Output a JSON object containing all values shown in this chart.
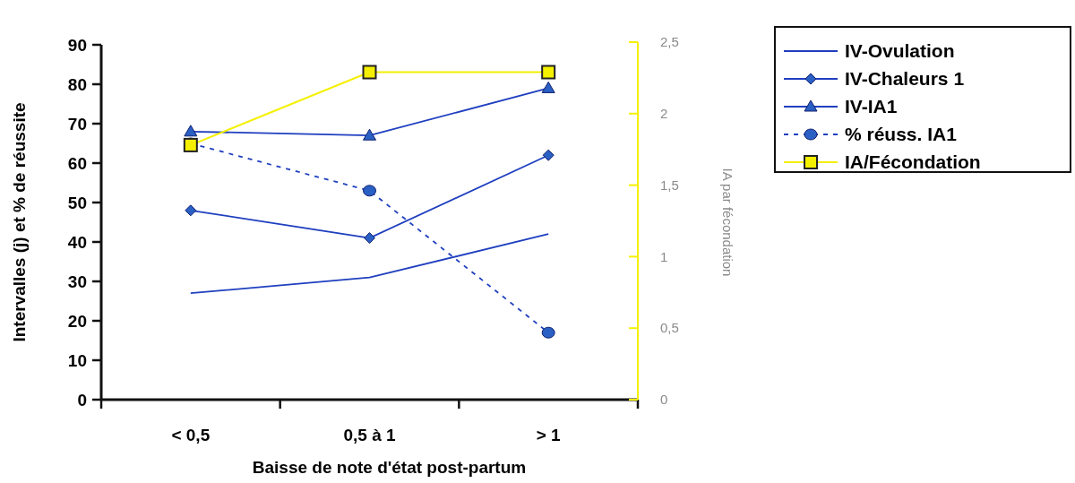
{
  "chart_data": {
    "type": "line",
    "xlabel": "Baisse de note d'état post-partum",
    "ylabel": "Intervalles (j) et % de réussite",
    "y2label": "IA par fécondation",
    "categories": [
      "< 0,5",
      "0,5 à 1",
      "> 1"
    ],
    "ylim": [
      0,
      90
    ],
    "yticks": [
      0,
      10,
      20,
      30,
      40,
      50,
      60,
      70,
      80,
      90
    ],
    "y2lim": [
      0,
      2.5
    ],
    "y2ticks": [
      {
        "value": 0,
        "label": "0"
      },
      {
        "value": 0.5,
        "label": "0,5"
      },
      {
        "value": 1,
        "label": "1"
      },
      {
        "value": 1.5,
        "label": "1,5"
      },
      {
        "value": 2,
        "label": "2"
      },
      {
        "value": 2.5,
        "label": "2,5"
      }
    ],
    "grid": false,
    "legend": "right",
    "series": [
      {
        "name": "IV-Ovulation",
        "color": "#1f3fbf",
        "values": [
          27,
          31,
          42
        ],
        "marker": "none",
        "line_style": "solid"
      },
      {
        "name": "IV-Chaleurs 1",
        "color": "#1f3fbf",
        "values": [
          48,
          41,
          62
        ],
        "marker": "diamond",
        "line_style": "solid"
      },
      {
        "name": "IV-IA1",
        "color": "#1f3fbf",
        "values": [
          68,
          67,
          79
        ],
        "marker": "triangle",
        "line_style": "solid"
      },
      {
        "name": "% réuss. IA1",
        "color": "#1f3fbf",
        "values": [
          65,
          53,
          17
        ],
        "marker": "circle",
        "line_style": "dashed"
      },
      {
        "name": "IA/Fécondation",
        "color": "#f5f000",
        "values": [
          1.78,
          2.29,
          2.29
        ],
        "marker": "square",
        "line_style": "solid",
        "axis": "y2"
      }
    ]
  }
}
